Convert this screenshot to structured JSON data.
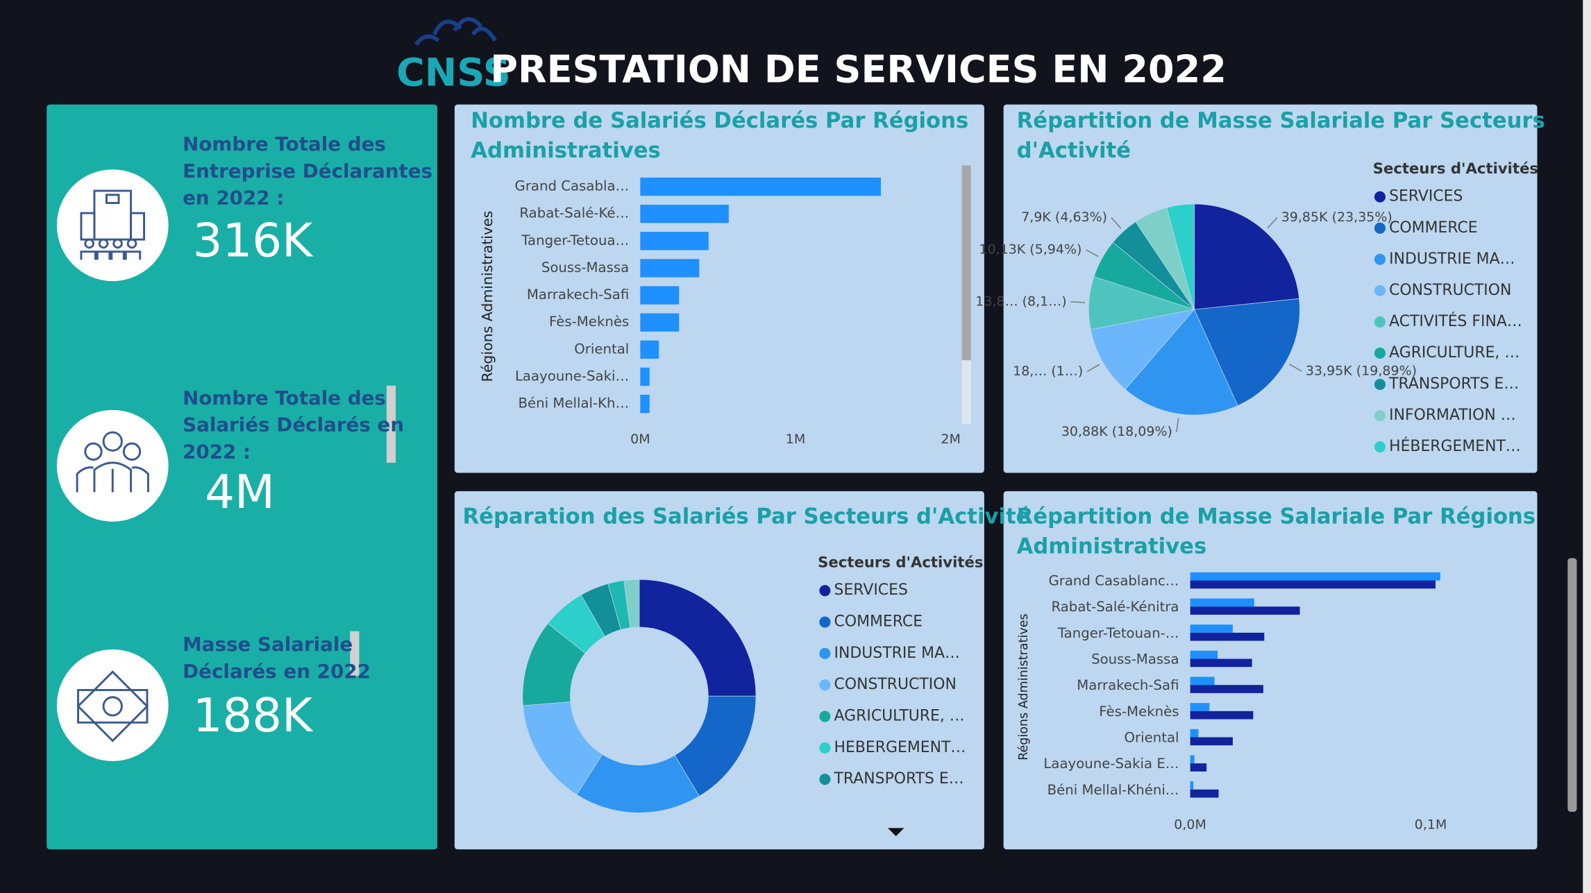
{
  "header": {
    "logo": "CNSS",
    "title": "PRESTATION DE SERVICES EN 2022"
  },
  "kpis": [
    {
      "title": [
        "Nombre Totale des",
        "Entreprise Déclarantes",
        "en 2022 :"
      ],
      "value": "316K"
    },
    {
      "title": [
        "Nombre Totale des",
        "Salariés Déclarés  en",
        "2022 :"
      ],
      "value": "4M"
    },
    {
      "title": [
        "Masse Salariale",
        "Déclarés en 2022"
      ],
      "value": "188K"
    }
  ],
  "chart_data": [
    {
      "type": "hbar",
      "title": [
        "Nombre de Salariés Déclarés Par Régions",
        "Administratives"
      ],
      "y_label": "Régions Administratives",
      "categories": [
        "Grand Casabla…",
        "Rabat-Salé-Ké…",
        "Tanger-Tetoua…",
        "Souss-Massa",
        "Marrakech-Safi",
        "Fès-Meknès",
        "Oriental",
        "Laayoune-Saki…",
        "Béni Mellal-Kh…"
      ],
      "values": [
        1550000,
        570000,
        440000,
        380000,
        250000,
        250000,
        120000,
        60000,
        60000
      ],
      "color": "#1e90ff",
      "xlim": [
        0,
        2000000
      ],
      "xticks": [
        {
          "value": 0,
          "label": "0M"
        },
        {
          "value": 1000000,
          "label": "1M"
        },
        {
          "value": 2000000,
          "label": "2M"
        }
      ]
    },
    {
      "type": "pie",
      "title": [
        "Répartition de Masse Salariale Par Secteurs",
        "d'Activité"
      ],
      "legend_title": "Secteurs d'Activités",
      "categories": [
        "SERVICES",
        "COMMERCE",
        "INDUSTRIE MA…",
        "CONSTRUCTION",
        "ACTIVITÉS FINA…",
        "AGRICULTURE, …",
        "TRANSPORTS E…",
        "INFORMATION …",
        "HÉBERGEMENT…"
      ],
      "values": [
        39850,
        33950,
        30880,
        18100,
        13830,
        10130,
        7900,
        8800,
        7200
      ],
      "value_labels": [
        "39,85K (23,35%)",
        "33,95K (19,89%)",
        "30,88K (18,09%)",
        "18,… (1…)",
        "13,8… (8,1…)",
        "10,13K (5,94%)",
        "7,9K (4,63%)",
        null,
        null
      ],
      "colors": [
        "#12239e",
        "#1466c8",
        "#2f95f0",
        "#6cb6fb",
        "#4fc4bf",
        "#17a99d",
        "#138f9a",
        "#7ecfc8",
        "#2ccfc9"
      ]
    },
    {
      "type": "donut",
      "title": [
        "Réparation des Salariés Par Secteurs d'Activité"
      ],
      "legend_title": "Secteurs d'Activités",
      "categories": [
        "SERVICES",
        "COMMERCE",
        "INDUSTRIE MA…",
        "CONSTRUCTION",
        "AGRICULTURE, …",
        "HEBERGEMENT…",
        "TRANSPORTS E…",
        null,
        null
      ],
      "values": [
        25,
        16.4,
        17.6,
        14.7,
        12,
        6,
        4,
        2.2,
        2.1
      ],
      "colors": [
        "#12239e",
        "#1466c8",
        "#2f95f0",
        "#6cb6fb",
        "#17a99d",
        "#2ccfc9",
        "#138f9a",
        "#1fb8b0",
        "#7ecfc8"
      ]
    },
    {
      "type": "grouped_hbar",
      "title": [
        "Répartition de Masse Salariale Par Régions",
        "Administratives"
      ],
      "y_label": "Régions Administratives",
      "categories": [
        "Grand Casablanc…",
        "Rabat-Salé-Kénitra",
        "Tanger-Tetouan-…",
        "Souss-Massa",
        "Marrakech-Safi",
        "Fès-Meknès",
        "Oriental",
        "Laayoune-Sakia E…",
        "Béni Mellal-Khéni…"
      ],
      "series": [
        {
          "color": "#1e90ff",
          "values": [
            104000,
            26600,
            17700,
            11400,
            10100,
            8000,
            3400,
            1700,
            1300
          ]
        },
        {
          "color": "#12239e",
          "values": [
            102000,
            45600,
            30800,
            25700,
            30400,
            26200,
            17700,
            6800,
            11800
          ]
        }
      ],
      "xlim": [
        0,
        100000
      ],
      "xticks": [
        {
          "value": 0,
          "label": "0,0M"
        },
        {
          "value": 100000,
          "label": "0,1M"
        }
      ]
    }
  ]
}
